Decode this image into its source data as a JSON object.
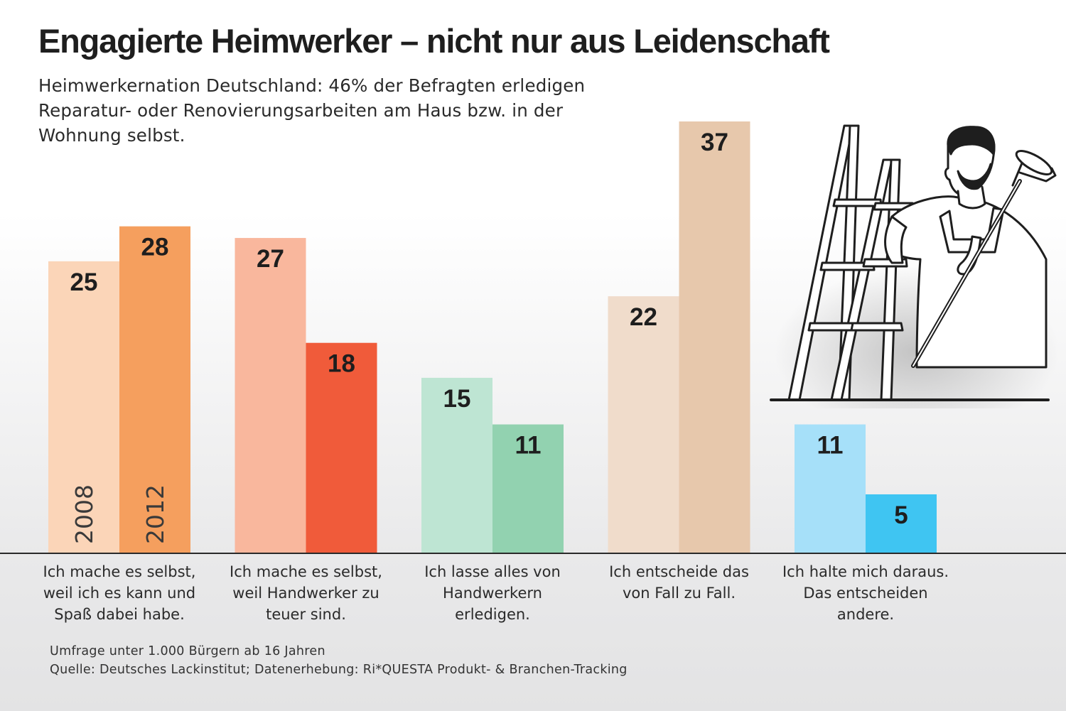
{
  "title": "Engagierte Heimwerker – nicht nur aus Leidenschaft",
  "subtitle": "Heimwerkernation Deutschland: 46% der Befragten erledigen Reparatur- oder Renovierungsarbeiten am Haus bzw. in der Wohnung selbst.",
  "footer": {
    "line1": "Umfrage unter 1.000 Bürgern ab 16 Jahren",
    "line2": "Quelle: Deutsches Lackinstitut; Datenerhebung: Ri*QUESTA Produkt- & Branchen-Tracking"
  },
  "illustration": {
    "icon": "painter-on-ladder-icon"
  },
  "chart_data": {
    "type": "bar",
    "categories": [
      [
        "Ich mache es selbst,",
        "weil ich es kann und",
        "Spaß dabei habe."
      ],
      [
        "Ich mache es selbst,",
        "weil Handwerker zu",
        "teuer sind."
      ],
      [
        "Ich lasse alles von",
        "Handwerkern",
        "erledigen."
      ],
      [
        "Ich entscheide das",
        "von Fall zu Fall."
      ],
      [
        "Ich halte mich daraus.",
        "Das entscheiden",
        "andere."
      ]
    ],
    "series": [
      {
        "name": "2008",
        "values": [
          25,
          27,
          15,
          22,
          11
        ]
      },
      {
        "name": "2012",
        "values": [
          28,
          18,
          11,
          37,
          5
        ]
      }
    ],
    "colors": [
      [
        "#fbd5b8",
        "#f59f5e"
      ],
      [
        "#f9b79d",
        "#f05b3a"
      ],
      [
        "#bee5d3",
        "#92d2b0"
      ],
      [
        "#f0dccb",
        "#e7c8ac"
      ],
      [
        "#a6e0f9",
        "#3fc5f2"
      ]
    ],
    "ylim": [
      0,
      37
    ],
    "grid": false,
    "legend": "series names printed inside first group bars",
    "title": "",
    "xlabel": "",
    "ylabel": ""
  }
}
